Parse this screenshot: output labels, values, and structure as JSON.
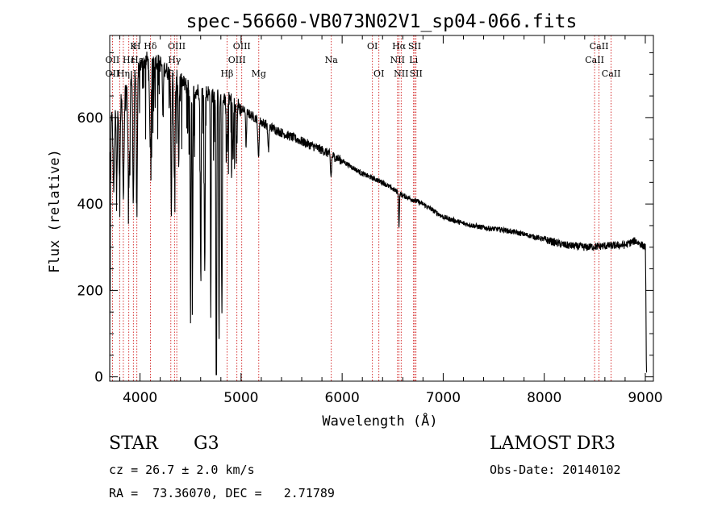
{
  "chart_data": {
    "type": "line",
    "title": "spec-56660-VB073N02V1_sp04-066.fits",
    "xlabel": "Wavelength (Å)",
    "ylabel": "Flux (relative)",
    "xlim": [
      3700,
      9080
    ],
    "ylim": [
      -10,
      790
    ],
    "x_ticks": [
      4000,
      5000,
      6000,
      7000,
      8000,
      9000
    ],
    "x_tick_labels": [
      "4000",
      "5000",
      "6000",
      "7000",
      "8000",
      "9000"
    ],
    "y_ticks": [
      0,
      200,
      400,
      600
    ],
    "y_tick_labels": [
      "0",
      "200",
      "400",
      "600"
    ],
    "continuum": [
      [
        3700,
        600
      ],
      [
        3800,
        640
      ],
      [
        3900,
        690
      ],
      [
        4000,
        720
      ],
      [
        4100,
        740
      ],
      [
        4200,
        725
      ],
      [
        4300,
        700
      ],
      [
        4400,
        685
      ],
      [
        4500,
        665
      ],
      [
        4600,
        660
      ],
      [
        4700,
        655
      ],
      [
        4800,
        650
      ],
      [
        4900,
        640
      ],
      [
        5000,
        620
      ],
      [
        5200,
        590
      ],
      [
        5400,
        565
      ],
      [
        5600,
        545
      ],
      [
        5800,
        525
      ],
      [
        6000,
        500
      ],
      [
        6200,
        470
      ],
      [
        6400,
        450
      ],
      [
        6600,
        420
      ],
      [
        6800,
        400
      ],
      [
        7000,
        370
      ],
      [
        7200,
        355
      ],
      [
        7400,
        345
      ],
      [
        7600,
        340
      ],
      [
        7800,
        330
      ],
      [
        8000,
        318
      ],
      [
        8200,
        305
      ],
      [
        8400,
        300
      ],
      [
        8600,
        303
      ],
      [
        8800,
        305
      ],
      [
        8900,
        315
      ],
      [
        9000,
        300
      ]
    ],
    "absorption_features": [
      {
        "center": 3705,
        "depth": 420,
        "width": 5
      },
      {
        "center": 3740,
        "depth": 180,
        "width": 10
      },
      {
        "center": 3770,
        "depth": 160,
        "width": 8
      },
      {
        "center": 3798,
        "depth": 190,
        "width": 8
      },
      {
        "center": 3835,
        "depth": 230,
        "width": 10
      },
      {
        "center": 3889,
        "depth": 250,
        "width": 12
      },
      {
        "center": 3934,
        "depth": 300,
        "width": 8
      },
      {
        "center": 3969,
        "depth": 290,
        "width": 8
      },
      {
        "center": 4102,
        "depth": 200,
        "width": 12
      },
      {
        "center": 4227,
        "depth": 130,
        "width": 6
      },
      {
        "center": 4310,
        "depth": 330,
        "width": 6
      },
      {
        "center": 4341,
        "depth": 250,
        "width": 9
      },
      {
        "center": 4383,
        "depth": 200,
        "width": 6
      },
      {
        "center": 4500,
        "depth": 500,
        "width": 6
      },
      {
        "center": 4520,
        "depth": 430,
        "width": 5
      },
      {
        "center": 4600,
        "depth": 400,
        "width": 6
      },
      {
        "center": 4640,
        "depth": 420,
        "width": 6
      },
      {
        "center": 4700,
        "depth": 530,
        "width": 5
      },
      {
        "center": 4755,
        "depth": 640,
        "width": 6
      },
      {
        "center": 4782,
        "depth": 560,
        "width": 5
      },
      {
        "center": 4810,
        "depth": 520,
        "width": 5
      },
      {
        "center": 4861,
        "depth": 120,
        "width": 8
      },
      {
        "center": 4920,
        "depth": 140,
        "width": 6
      },
      {
        "center": 4957,
        "depth": 100,
        "width": 5
      },
      {
        "center": 5050,
        "depth": 90,
        "width": 5
      },
      {
        "center": 5172,
        "depth": 90,
        "width": 8
      },
      {
        "center": 5270,
        "depth": 60,
        "width": 8
      },
      {
        "center": 5890,
        "depth": 50,
        "width": 8
      },
      {
        "center": 6563,
        "depth": 80,
        "width": 5
      }
    ],
    "lines": [
      {
        "name": "Hδ",
        "wave": 4102,
        "row": 1
      },
      {
        "name": "OII",
        "wave": 3727,
        "row": 2
      },
      {
        "name": "OII",
        "wave": 3727,
        "row": 3
      },
      {
        "name": "K",
        "wave": 3934,
        "row": 1
      },
      {
        "name": "H",
        "wave": 3969,
        "row": 1
      },
      {
        "name": "Hε",
        "wave": 3970,
        "row": 2
      },
      {
        "name": "Hη",
        "wave": 3835,
        "row": 3
      },
      {
        "name": "Hε",
        "wave": 3889,
        "row": 2
      },
      {
        "name": "H",
        "wave": 3969,
        "row": 3
      },
      {
        "name": "OIII",
        "wave": 4363,
        "row": 1
      },
      {
        "name": "Hγ",
        "wave": 4341,
        "row": 2
      },
      {
        "name": "G",
        "wave": 4305,
        "row": 3
      },
      {
        "name": "OIII",
        "wave": 5007,
        "row": 1
      },
      {
        "name": "OIII",
        "wave": 4959,
        "row": 2
      },
      {
        "name": "Hβ",
        "wave": 4861,
        "row": 3
      },
      {
        "name": "Mg",
        "wave": 5175,
        "row": 3
      },
      {
        "name": "Na",
        "wave": 5893,
        "row": 2
      },
      {
        "name": "OI",
        "wave": 6300,
        "row": 1
      },
      {
        "name": "OI",
        "wave": 6364,
        "row": 3
      },
      {
        "name": "Hα",
        "wave": 6563,
        "row": 1
      },
      {
        "name": "NII",
        "wave": 6548,
        "row": 2
      },
      {
        "name": "NII",
        "wave": 6584,
        "row": 3
      },
      {
        "name": "SII",
        "wave": 6717,
        "row": 1
      },
      {
        "name": "Li",
        "wave": 6707,
        "row": 2
      },
      {
        "name": "SII",
        "wave": 6731,
        "row": 3
      },
      {
        "name": "CaII",
        "wave": 8542,
        "row": 1
      },
      {
        "name": "CaII",
        "wave": 8498,
        "row": 2
      },
      {
        "name": "CaII",
        "wave": 8662,
        "row": 3
      }
    ],
    "line_marker_waves": [
      3727,
      3798,
      3835,
      3889,
      3934,
      3969,
      4102,
      4305,
      4341,
      4363,
      4861,
      4959,
      5007,
      5175,
      5893,
      6300,
      6364,
      6548,
      6563,
      6584,
      6707,
      6717,
      6731,
      8498,
      8542,
      8662
    ]
  },
  "info": {
    "object_class": "STAR",
    "subclass": "G3",
    "survey": "LAMOST DR3",
    "redshift": "cz = 26.7 ± 2.0 km/s",
    "obs_date": "Obs-Date: 20140102",
    "coords": "RA =  73.36070, DEC =   2.71789"
  },
  "colors": {
    "spectrum": "#000000",
    "line_markers": "#cc0000",
    "axes": "#000000",
    "background": "#ffffff"
  }
}
